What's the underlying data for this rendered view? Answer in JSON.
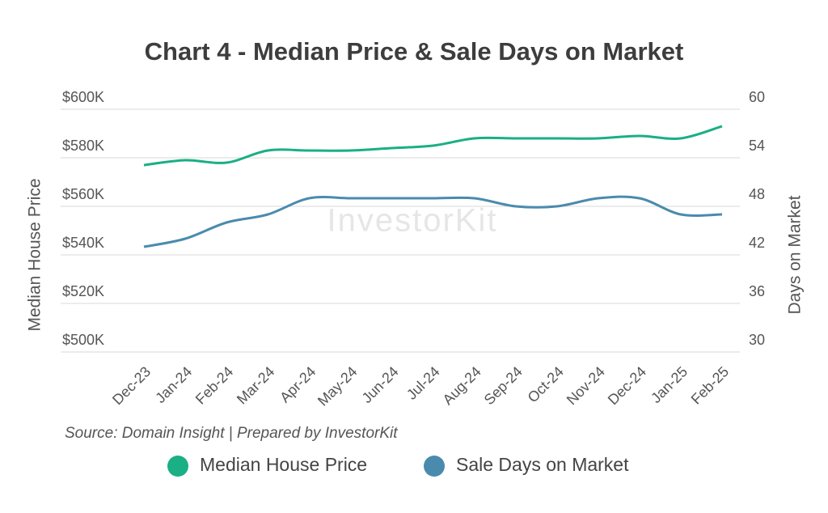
{
  "chart_data": {
    "type": "line",
    "title": "Chart 4 - Median Price & Sale Days on Market",
    "y_label": "Median House Price",
    "y2_label": "Days on Market",
    "source": "Source: Domain Insight | Prepared by InvestorKit",
    "watermark": "InvestorKit",
    "categories": [
      "Dec-23",
      "Jan-24",
      "Feb-24",
      "Mar-24",
      "Apr-24",
      "May-24",
      "Jun-24",
      "Jul-24",
      "Aug-24",
      "Sep-24",
      "Oct-24",
      "Nov-24",
      "Dec-24",
      "Jan-25",
      "Feb-25"
    ],
    "series": [
      {
        "name": "Median House Price",
        "color": "#1aaf84",
        "values": [
          577000,
          579000,
          578000,
          583000,
          583000,
          583000,
          584000,
          585000,
          588000,
          588000,
          588000,
          588000,
          589000,
          588000,
          593000
        ]
      },
      {
        "name": "Sale Days on Market",
        "color": "#4a8bad",
        "axis": "y2",
        "values": [
          43,
          44,
          46,
          47,
          49,
          49,
          49,
          49,
          49,
          48,
          48,
          49,
          49,
          47,
          47
        ]
      }
    ],
    "ylim": [
      500000,
      600000
    ],
    "yticks": [
      {
        "value": 500000,
        "label": "$500K"
      },
      {
        "value": 520000,
        "label": "$520K"
      },
      {
        "value": 540000,
        "label": "$540K"
      },
      {
        "value": 560000,
        "label": "$560K"
      },
      {
        "value": 580000,
        "label": "$580K"
      },
      {
        "value": 600000,
        "label": "$600K"
      }
    ],
    "y2lim": [
      30,
      60
    ],
    "y2ticks": [
      30,
      36,
      42,
      48,
      54,
      60
    ],
    "grid": true,
    "legend": "bottom"
  }
}
